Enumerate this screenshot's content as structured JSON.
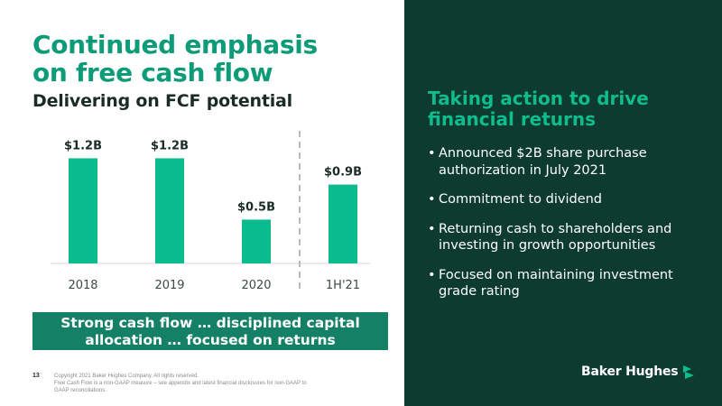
{
  "slide": {
    "title_lines": [
      "Continued emphasis",
      "on free cash flow"
    ],
    "subtitle": "Delivering on FCF potential",
    "banner_lines": [
      "Strong cash flow … disciplined capital",
      "allocation … focused on returns"
    ],
    "page_number": "13",
    "footer_lines": [
      "Copyright 2021 Baker Hughes Company. All rights reserved.",
      "Free Cash Flow is a non-GAAP measure – see appendix and latest financial disclosures for non-GAAP to",
      "GAAP reconciliations."
    ]
  },
  "right_panel": {
    "heading_lines": [
      "Taking action to drive",
      "financial returns"
    ],
    "bullets": [
      [
        "Announced $2B share purchase",
        "authorization in July 2021"
      ],
      [
        "Commitment to dividend"
      ],
      [
        "Returning cash to shareholders and",
        "investing in growth opportunities"
      ],
      [
        "Focused on maintaining investment",
        "grade rating"
      ]
    ],
    "logo_text": "Baker Hughes"
  },
  "colors": {
    "accent": "#0e9b77",
    "bar": "#09bb8d",
    "panel_bg": "#0d3b30",
    "banner_bg": "#148166"
  },
  "chart_data": {
    "type": "bar",
    "categories": [
      "2018",
      "2019",
      "2020",
      "1H'21"
    ],
    "values": [
      1.2,
      1.2,
      0.5,
      0.9
    ],
    "labels": [
      "$1.2B",
      "$1.2B",
      "$0.5B",
      "$0.9B"
    ],
    "title": "Delivering on FCF potential",
    "xlabel": "",
    "ylabel": "",
    "ylim": [
      0,
      1.4
    ],
    "grid": false,
    "legend": "none"
  }
}
